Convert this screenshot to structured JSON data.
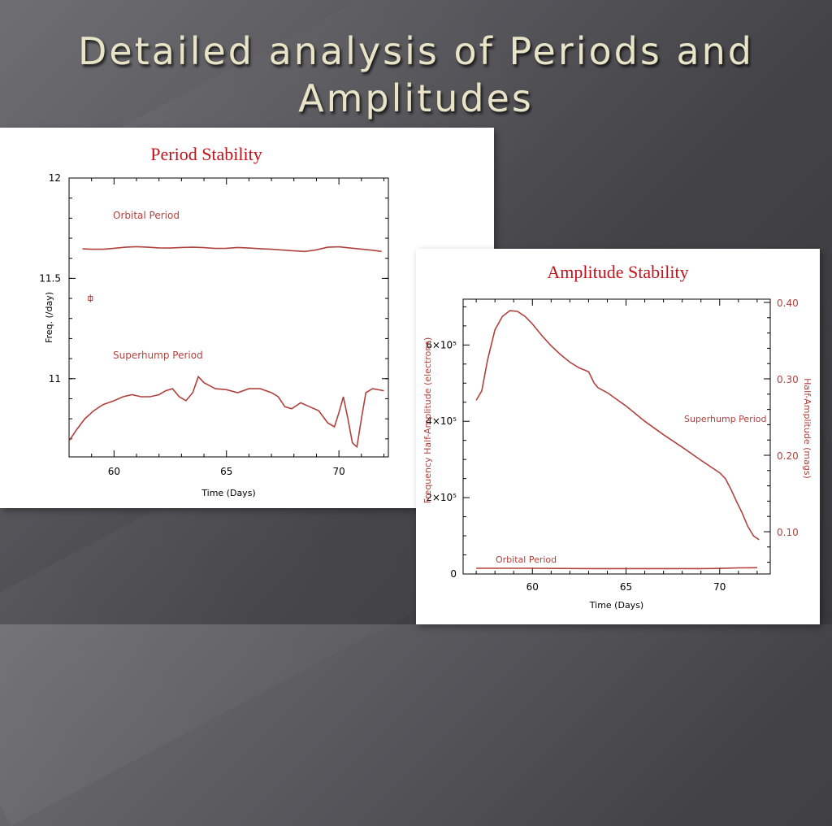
{
  "slide": {
    "title": "Detailed analysis of Periods and Amplitudes"
  },
  "colors": {
    "curve": "#b0413c",
    "label": "#b0413c",
    "panel_title": "#c0121b",
    "title_text": "#e9e4c7"
  },
  "chart_data": [
    {
      "type": "line",
      "title": "Period Stability",
      "xlabel": "Time (Days)",
      "ylabel": "Freq. (/day)",
      "xlim": [
        58,
        72.2
      ],
      "ylim": [
        10.61,
        12
      ],
      "xticks": [
        60,
        65,
        70
      ],
      "yticks": [
        11,
        11.5,
        12
      ],
      "grid": false,
      "annotations": [
        "Orbital Period",
        "Superhump Period"
      ],
      "error_bar": {
        "x": 58.95,
        "y": 11.4,
        "err": 0.012
      },
      "series": [
        {
          "name": "Orbital Period",
          "x": [
            58.6,
            59,
            59.5,
            60,
            60.5,
            61,
            61.5,
            62,
            62.5,
            63,
            63.5,
            64,
            64.5,
            65,
            65.5,
            66,
            66.5,
            67,
            67.5,
            68,
            68.5,
            69,
            69.5,
            70,
            70.5,
            71,
            71.5,
            71.9
          ],
          "y": [
            11.647,
            11.645,
            11.645,
            11.65,
            11.655,
            11.658,
            11.655,
            11.652,
            11.651,
            11.654,
            11.655,
            11.653,
            11.649,
            11.65,
            11.654,
            11.651,
            11.648,
            11.645,
            11.641,
            11.637,
            11.634,
            11.642,
            11.655,
            11.657,
            11.651,
            11.646,
            11.64,
            11.634
          ]
        },
        {
          "name": "Superhump Period",
          "x": [
            58,
            58.3,
            58.7,
            59.1,
            59.5,
            60,
            60.4,
            60.8,
            61.2,
            61.6,
            62,
            62.3,
            62.6,
            62.9,
            63.2,
            63.5,
            63.75,
            64,
            64.5,
            65,
            65.5,
            66,
            66.5,
            67,
            67.3,
            67.6,
            67.9,
            68.3,
            68.7,
            69.1,
            69.5,
            69.8,
            70,
            70.2,
            70.4,
            70.6,
            70.8,
            71,
            71.2,
            71.5,
            72
          ],
          "y": [
            10.69,
            10.74,
            10.8,
            10.84,
            10.87,
            10.89,
            10.91,
            10.92,
            10.91,
            10.91,
            10.92,
            10.94,
            10.95,
            10.91,
            10.89,
            10.93,
            11.01,
            10.98,
            10.95,
            10.945,
            10.93,
            10.95,
            10.95,
            10.93,
            10.91,
            10.86,
            10.85,
            10.88,
            10.86,
            10.84,
            10.78,
            10.76,
            10.83,
            10.91,
            10.8,
            10.68,
            10.66,
            10.8,
            10.93,
            10.95,
            10.94
          ]
        }
      ]
    },
    {
      "type": "line",
      "title": "Amplitude Stability",
      "xlabel": "Time (Days)",
      "ylabel": "Frequency Half-Amplitude (electrons)",
      "ylabel_right": "Half-Amplitude (mags)",
      "xlim": [
        56.3,
        72.7
      ],
      "ylim": [
        0,
        720000
      ],
      "xticks": [
        60,
        65,
        70
      ],
      "yticks": [
        0,
        200000,
        400000,
        600000
      ],
      "ytick_labels": [
        "0",
        "2×10⁵",
        "4×10⁵",
        "6×10⁵"
      ],
      "yticks_right": [
        "0.40",
        "0.30",
        "0.20",
        "0.10"
      ],
      "grid": false,
      "annotations": [
        "Superhump Period",
        "Orbital Period"
      ],
      "series": [
        {
          "name": "Superhump Period",
          "x": [
            57,
            57.3,
            57.6,
            58,
            58.4,
            58.8,
            59.2,
            59.6,
            60,
            60.5,
            61,
            61.5,
            62,
            62.5,
            63,
            63.1,
            63.3,
            63.5,
            64,
            65,
            66,
            67,
            68,
            69,
            70,
            70.3,
            70.6,
            70.9,
            71.2,
            71.5,
            71.8,
            72.1
          ],
          "y": [
            455000,
            480000,
            560000,
            640000,
            675000,
            690000,
            688000,
            675000,
            655000,
            625000,
            598000,
            575000,
            555000,
            540000,
            530000,
            520000,
            500000,
            488000,
            475000,
            440000,
            400000,
            365000,
            332000,
            298000,
            265000,
            250000,
            222000,
            190000,
            160000,
            125000,
            100000,
            90000
          ]
        },
        {
          "name": "Orbital Period",
          "x": [
            57,
            60,
            63,
            66,
            69,
            70,
            71,
            72
          ],
          "y": [
            15000,
            15000,
            14000,
            14000,
            14000,
            14500,
            16000,
            16500
          ]
        }
      ]
    }
  ]
}
